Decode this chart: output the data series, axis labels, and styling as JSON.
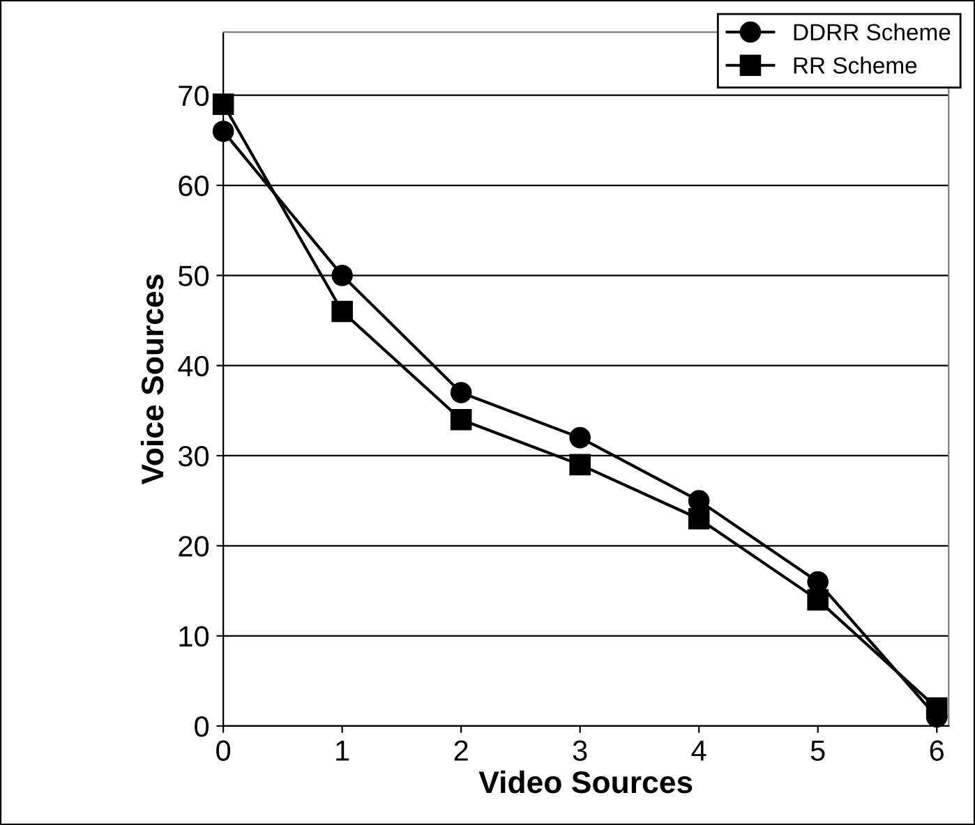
{
  "chart_data": {
    "type": "line",
    "xlabel": "Video Sources",
    "ylabel": "Voice Sources",
    "x": [
      0,
      1,
      2,
      3,
      4,
      5,
      6
    ],
    "series": [
      {
        "name": "DDRR Scheme",
        "color": "#000000",
        "marker": "circle",
        "values": [
          66,
          50,
          37,
          32,
          25,
          16,
          1
        ]
      },
      {
        "name": "RR Scheme",
        "color": "#000000",
        "marker": "square",
        "values": [
          69,
          46,
          34,
          29,
          23,
          14,
          2
        ]
      }
    ],
    "xlim": [
      0,
      6.1
    ],
    "xticks": [
      0,
      1,
      2,
      3,
      4,
      5,
      6
    ],
    "ylim": [
      0,
      77
    ],
    "yticks": [
      0,
      10,
      20,
      30,
      40,
      50,
      60,
      70
    ],
    "grid": "y",
    "legend": "top right",
    "line_style": "solid"
  }
}
